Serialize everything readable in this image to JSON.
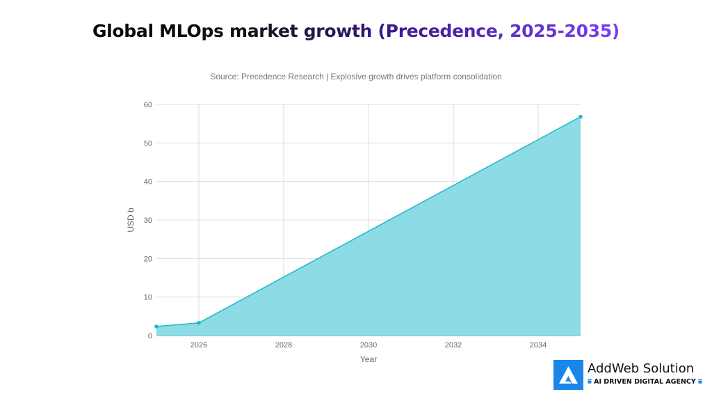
{
  "title": "Global MLOps market growth (Precedence, 2025-2035)",
  "subtitle": "Source: Precedence Research | Explosive growth drives platform consolidation",
  "chart_data": {
    "type": "area",
    "title": "Global MLOps market growth (Precedence, 2025-2035)",
    "subtitle": "Source: Precedence Research | Explosive growth drives platform consolidation",
    "xlabel": "Year",
    "ylabel": "USD b",
    "x": [
      2025,
      2026,
      2035
    ],
    "values": [
      2.35,
      3.3,
      56.8
    ],
    "xlim": [
      2025,
      2035
    ],
    "ylim": [
      0,
      60
    ],
    "xticks": [
      2026,
      2028,
      2030,
      2032,
      2034
    ],
    "yticks": [
      0,
      10,
      20,
      30,
      40,
      50,
      60
    ],
    "grid": true,
    "color": "#1fb8c9",
    "fill_color": "#8ddbe5"
  },
  "logo": {
    "name": "AddWeb Solution",
    "tagline": "AI DRIVEN DIGITAL AGENCY",
    "color": "#1a86e8"
  }
}
